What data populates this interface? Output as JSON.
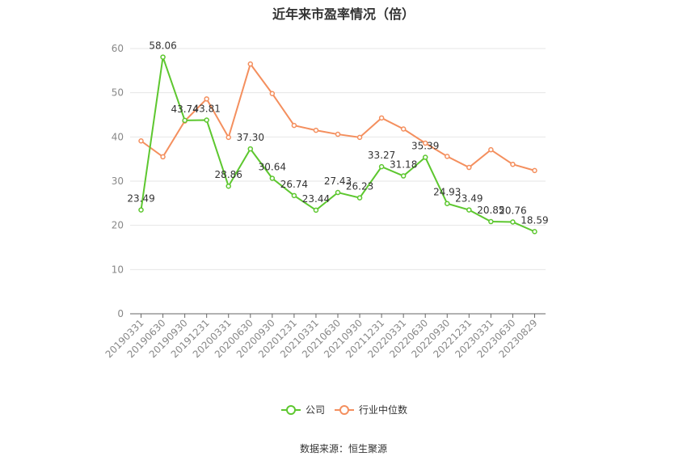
{
  "chart_data": {
    "type": "line",
    "title": "近年来市盈率情况（倍）",
    "source": "数据来源：恒生聚源",
    "categories": [
      "20190331",
      "20190630",
      "20190930",
      "20191231",
      "20200331",
      "20200630",
      "20200930",
      "20201231",
      "20210331",
      "20210630",
      "20210930",
      "20211231",
      "20220331",
      "20220630",
      "20220930",
      "20221231",
      "20230331",
      "20230630",
      "20230829"
    ],
    "ylim": [
      0,
      60
    ],
    "yticks": [
      0,
      10,
      20,
      30,
      40,
      50,
      60
    ],
    "grid": true,
    "legend_position": "bottom",
    "series": [
      {
        "name": "公司",
        "color": "#5dc72f",
        "values": [
          23.49,
          58.06,
          43.74,
          43.81,
          28.86,
          37.3,
          30.64,
          26.74,
          23.44,
          27.43,
          26.23,
          33.27,
          31.18,
          35.39,
          24.93,
          23.49,
          20.85,
          20.76,
          18.59
        ],
        "labels": [
          "23.49",
          "58.06",
          "43.74",
          "43.81",
          "28.86",
          "37.30",
          "30.64",
          "26.74",
          "23.44",
          "27.43",
          "26.23",
          "33.27",
          "31.18",
          "35.39",
          "24.93",
          "23.49",
          "20.85",
          "20.76",
          "18.59"
        ]
      },
      {
        "name": "行业中位数",
        "color": "#f48f5e",
        "values": [
          39.1,
          35.5,
          43.6,
          48.6,
          39.9,
          56.5,
          49.8,
          42.6,
          41.5,
          40.6,
          39.9,
          44.3,
          41.8,
          38.6,
          35.6,
          33.1,
          37.1,
          33.8,
          32.4
        ]
      }
    ]
  }
}
